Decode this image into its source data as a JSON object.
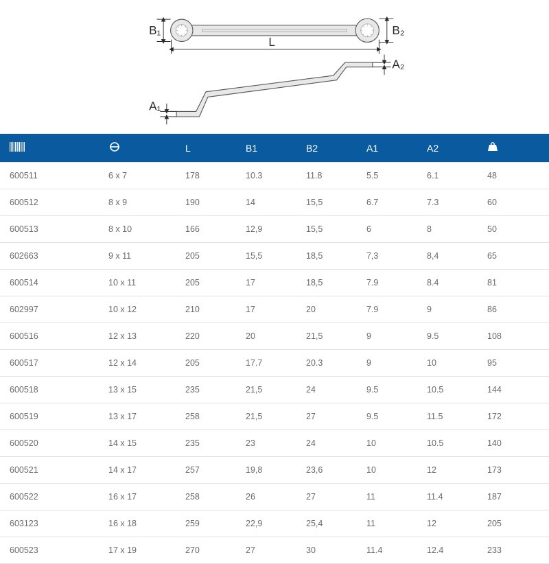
{
  "diagram": {
    "labels": {
      "B1": "B₁",
      "B2": "B₂",
      "L": "L",
      "A1": "A₁",
      "A2": "A₂"
    },
    "colors": {
      "stroke": "#2a2a2a",
      "tool_outline": "#5a5a5a",
      "tool_fill": "#e8e8e8",
      "text": "#2a2a2a"
    }
  },
  "table": {
    "header_bg": "#0a5aa0",
    "header_fg": "#ffffff",
    "row_fg": "#6a6a6a",
    "border_color": "#e2e2e2",
    "columns": [
      {
        "key": "code",
        "label_icon": "barcode"
      },
      {
        "key": "size",
        "label_icon": "size"
      },
      {
        "key": "L",
        "label": "L"
      },
      {
        "key": "B1",
        "label": "B1"
      },
      {
        "key": "B2",
        "label": "B2"
      },
      {
        "key": "A1",
        "label": "A1"
      },
      {
        "key": "A2",
        "label": "A2"
      },
      {
        "key": "weight",
        "label_icon": "weight"
      }
    ],
    "rows": [
      [
        "600511",
        "6 x 7",
        "178",
        "10.3",
        "11.8",
        "5.5",
        "6.1",
        "48"
      ],
      [
        "600512",
        "8 x 9",
        "190",
        "14",
        "15,5",
        "6.7",
        "7.3",
        "60"
      ],
      [
        "600513",
        "8 x 10",
        "166",
        "12,9",
        "15,5",
        "6",
        "8",
        "50"
      ],
      [
        "602663",
        "9 x 11",
        "205",
        "15,5",
        "18,5",
        "7,3",
        "8,4",
        "65"
      ],
      [
        "600514",
        "10 x 11",
        "205",
        "17",
        "18,5",
        "7.9",
        "8.4",
        "81"
      ],
      [
        "602997",
        "10 x 12",
        "210",
        "17",
        "20",
        "7.9",
        "9",
        "86"
      ],
      [
        "600516",
        "12 x 13",
        "220",
        "20",
        "21,5",
        "9",
        "9.5",
        "108"
      ],
      [
        "600517",
        "12 x 14",
        "205",
        "17.7",
        "20.3",
        "9",
        "10",
        "95"
      ],
      [
        "600518",
        "13 x 15",
        "235",
        "21,5",
        "24",
        "9.5",
        "10.5",
        "144"
      ],
      [
        "600519",
        "13 x 17",
        "258",
        "21,5",
        "27",
        "9.5",
        "11.5",
        "172"
      ],
      [
        "600520",
        "14 x 15",
        "235",
        "23",
        "24",
        "10",
        "10.5",
        "140"
      ],
      [
        "600521",
        "14 x 17",
        "257",
        "19,8",
        "23,6",
        "10",
        "12",
        "173"
      ],
      [
        "600522",
        "16 x 17",
        "258",
        "26",
        "27",
        "11",
        "11.4",
        "187"
      ],
      [
        "603123",
        "16 x 18",
        "259",
        "22,9",
        "25,4",
        "11",
        "12",
        "205"
      ],
      [
        "600523",
        "17 x 19",
        "270",
        "27",
        "30",
        "11.4",
        "12.4",
        "233"
      ]
    ]
  }
}
